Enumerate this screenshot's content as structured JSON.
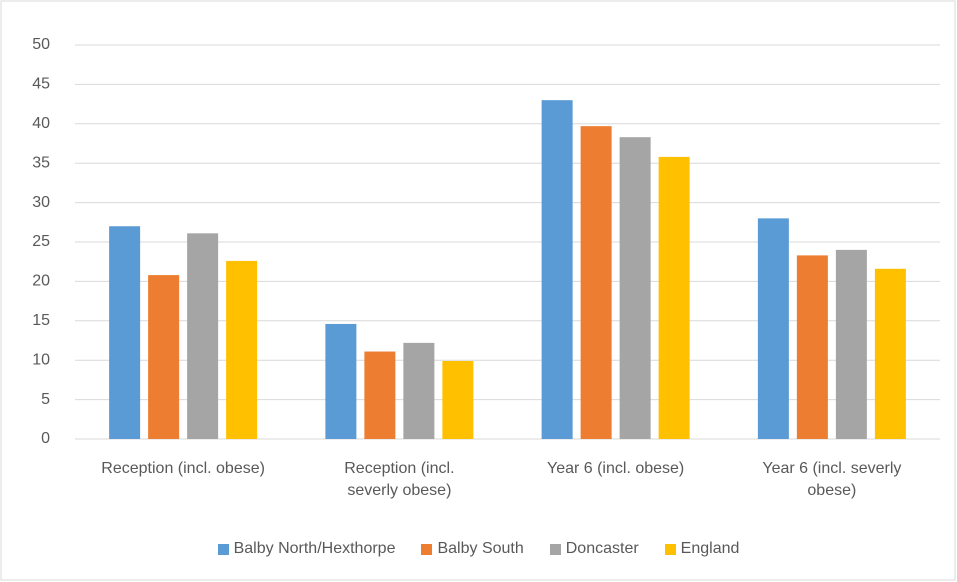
{
  "chart_data": {
    "type": "bar",
    "categories": [
      "Reception (incl. obese)",
      "Reception (incl. severly obese)",
      "Year 6 (incl. obese)",
      "Year 6 (incl. severly obese)"
    ],
    "series": [
      {
        "name": "Balby North/Hexthorpe",
        "color": "#5b9bd5",
        "values": [
          27.0,
          14.6,
          43.0,
          28.0
        ]
      },
      {
        "name": "Balby South",
        "color": "#ed7d31",
        "values": [
          20.8,
          11.1,
          39.7,
          23.3
        ]
      },
      {
        "name": "Doncaster",
        "color": "#a5a5a5",
        "values": [
          26.1,
          12.2,
          38.3,
          24.0
        ]
      },
      {
        "name": "England",
        "color": "#ffc000",
        "values": [
          22.6,
          9.9,
          35.8,
          21.6
        ]
      }
    ],
    "ylim": [
      0,
      50
    ],
    "yticks": [
      0,
      5,
      10,
      15,
      20,
      25,
      30,
      35,
      40,
      45,
      50
    ],
    "grid": true,
    "legend": "bottom"
  }
}
